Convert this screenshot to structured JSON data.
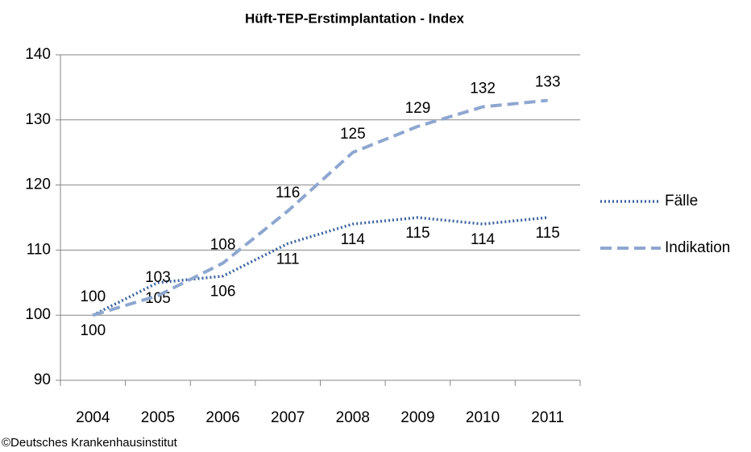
{
  "chart_data": {
    "type": "line",
    "title": "Hüft-TEP-Erstimplantation  - Index",
    "categories": [
      "2004",
      "2005",
      "2006",
      "2007",
      "2008",
      "2009",
      "2010",
      "2011"
    ],
    "series": [
      {
        "name": "Fälle",
        "color": "#3b64a0",
        "style": "dotted",
        "values": [
          100,
          105,
          106,
          111,
          114,
          115,
          114,
          115
        ]
      },
      {
        "name": "Indikation",
        "color": "#8ea7d0",
        "style": "dashed",
        "values": [
          100,
          103,
          108,
          116,
          125,
          129,
          132,
          133
        ]
      }
    ],
    "ylim": [
      90,
      140
    ],
    "yticks": [
      90,
      100,
      110,
      120,
      130,
      140
    ],
    "grid": true,
    "legend": "right",
    "source": "©Deutsches Krankenhausinstitut"
  }
}
